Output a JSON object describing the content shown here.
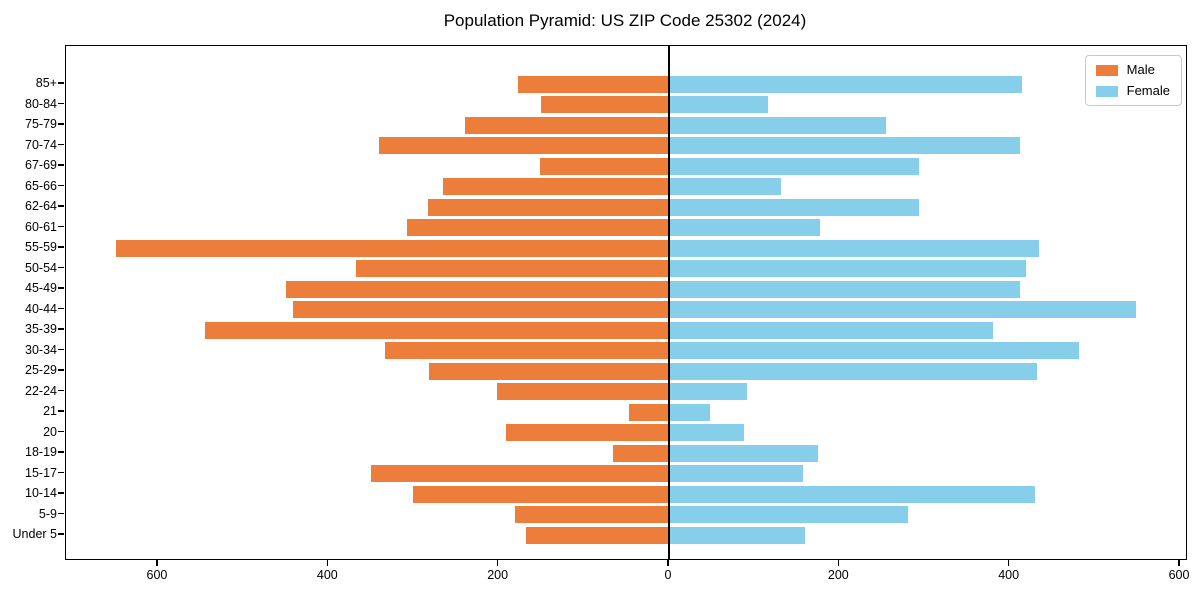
{
  "chart_data": {
    "type": "bar",
    "variant": "population-pyramid",
    "title": "Population Pyramid: US ZIP Code 25302 (2024)",
    "categories_top_to_bottom": [
      "85+",
      "80-84",
      "75-79",
      "70-74",
      "67-69",
      "65-66",
      "62-64",
      "60-61",
      "55-59",
      "50-54",
      "45-49",
      "40-44",
      "35-39",
      "30-34",
      "25-29",
      "22-24",
      "21",
      "20",
      "18-19",
      "15-17",
      "10-14",
      "5-9",
      "Under 5"
    ],
    "series": [
      {
        "name": "Male",
        "side": "left",
        "color": "#ed7d3a",
        "values": [
          177,
          150,
          240,
          340,
          151,
          265,
          283,
          308,
          649,
          368,
          450,
          442,
          545,
          333,
          282,
          202,
          47,
          191,
          66,
          350,
          300,
          181,
          168
        ]
      },
      {
        "name": "Female",
        "side": "right",
        "color": "#87ceeb",
        "values": [
          415,
          116,
          255,
          412,
          293,
          131,
          293,
          177,
          435,
          419,
          412,
          548,
          381,
          481,
          432,
          91,
          48,
          88,
          175,
          157,
          430,
          281,
          160
        ]
      }
    ],
    "x_axis": {
      "tick_values": [
        -600,
        -400,
        -200,
        0,
        200,
        400,
        600
      ],
      "tick_labels": [
        "600",
        "400",
        "200",
        "0",
        "200",
        "400",
        "600"
      ],
      "xlim": [
        -708,
        607
      ]
    },
    "ylabel": "",
    "xlabel": "",
    "grid": false,
    "legend_position": "upper right",
    "axis_color": "#000000",
    "background_color": "#ffffff"
  }
}
